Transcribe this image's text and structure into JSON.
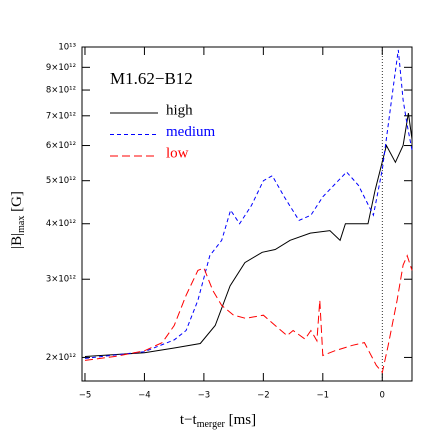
{
  "chart_data": {
    "type": "line",
    "annotation": "M1.62−B12",
    "xlabel": [
      "t−t",
      "merger",
      " [ms]"
    ],
    "ylabel": [
      "|B|",
      "max",
      " [G]"
    ],
    "log_y": true,
    "xlim": [
      -5.05,
      0.5
    ],
    "ylim": [
      1770000000000.0,
      10000000000000.0
    ],
    "xticks": [
      {
        "value": -5,
        "label": "−5"
      },
      {
        "value": -4,
        "label": "−4"
      },
      {
        "value": -3,
        "label": "−3"
      },
      {
        "value": -2,
        "label": "−2"
      },
      {
        "value": -1,
        "label": "−1"
      },
      0
    ],
    "yticks": [
      {
        "value": 2000000000000.0,
        "label": "2×10¹²"
      },
      {
        "value": 3000000000000.0,
        "label": "3×10¹²"
      },
      {
        "value": 4000000000000.0,
        "label": "4×10¹²"
      },
      {
        "value": 5000000000000.0,
        "label": "5×10¹²"
      },
      {
        "value": 6000000000000.0,
        "label": "6×10¹²"
      },
      {
        "value": 7000000000000.0,
        "label": "7×10¹²"
      },
      {
        "value": 8000000000000.0,
        "label": "8×10¹²"
      },
      {
        "value": 9000000000000.0,
        "label": "9×10¹²"
      },
      {
        "value": 10000000000000.0,
        "label": "10¹³"
      }
    ],
    "vline": 0,
    "legend": "upper left",
    "series": [
      {
        "name": "high",
        "color": "#000000",
        "dash": "none",
        "x": [
          -5,
          -4,
          -3.5,
          -3.06,
          -2.81,
          -2.56,
          -2.31,
          -2.02,
          -1.8,
          -1.55,
          -1.21,
          -0.88,
          -0.71,
          -0.62,
          -0.24,
          -0.12,
          0.07,
          0.22,
          0.35,
          0.44,
          0.5
        ],
        "values": [
          2010000000000.0,
          2050000000000.0,
          2100000000000.0,
          2150000000000.0,
          2360000000000.0,
          2900000000000.0,
          3270000000000.0,
          3450000000000.0,
          3500000000000.0,
          3670000000000.0,
          3810000000000.0,
          3860000000000.0,
          3670000000000.0,
          4000000000000.0,
          4000000000000.0,
          4760000000000.0,
          6000000000000.0,
          5500000000000.0,
          6000000000000.0,
          7100000000000.0,
          6200000000000.0
        ]
      },
      {
        "name": "medium",
        "color": "#0000ff",
        "dash": "4,3",
        "x": [
          -5,
          -4,
          -3.5,
          -3.3,
          -3.1,
          -2.9,
          -2.7,
          -2.55,
          -2.4,
          -2.2,
          -2.0,
          -1.85,
          -1.65,
          -1.4,
          -1.2,
          -1.0,
          -0.6,
          -0.4,
          -0.15,
          0,
          0.1,
          0.2,
          0.27,
          0.35,
          0.42,
          0.5
        ],
        "values": [
          1990000000000.0,
          2060000000000.0,
          2190000000000.0,
          2300000000000.0,
          2690000000000.0,
          3390000000000.0,
          3670000000000.0,
          4290000000000.0,
          4000000000000.0,
          4400000000000.0,
          5000000000000.0,
          5130000000000.0,
          4600000000000.0,
          4070000000000.0,
          4180000000000.0,
          4600000000000.0,
          5230000000000.0,
          4880000000000.0,
          4180000000000.0,
          5300000000000.0,
          6670000000000.0,
          8430000000000.0,
          9850000000000.0,
          7600000000000.0,
          6670000000000.0,
          5860000000000.0
        ]
      },
      {
        "name": "low",
        "color": "#ff0000",
        "dash": "8,4",
        "x": [
          -5,
          -4.5,
          -4,
          -3.7,
          -3.5,
          -3.3,
          -3.1,
          -3.0,
          -2.85,
          -2.7,
          -2.5,
          -2.3,
          -2.0,
          -1.8,
          -1.6,
          -1.5,
          -1.3,
          -1.2,
          -1.1,
          -1.05,
          -1.0,
          -0.8,
          -0.5,
          -0.3,
          -0.1,
          0,
          0.1,
          0.25,
          0.35,
          0.42,
          0.5
        ],
        "values": [
          1970000000000.0,
          2010000000000.0,
          2070000000000.0,
          2160000000000.0,
          2360000000000.0,
          2760000000000.0,
          3140000000000.0,
          3180000000000.0,
          2830000000000.0,
          2620000000000.0,
          2490000000000.0,
          2450000000000.0,
          2490000000000.0,
          2360000000000.0,
          2240000000000.0,
          2300000000000.0,
          2200000000000.0,
          2300000000000.0,
          2180000000000.0,
          2690000000000.0,
          2020000000000.0,
          2070000000000.0,
          2130000000000.0,
          2160000000000.0,
          1920000000000.0,
          1850000000000.0,
          2130000000000.0,
          2690000000000.0,
          3230000000000.0,
          3390000000000.0,
          3140000000000.0
        ]
      }
    ]
  }
}
